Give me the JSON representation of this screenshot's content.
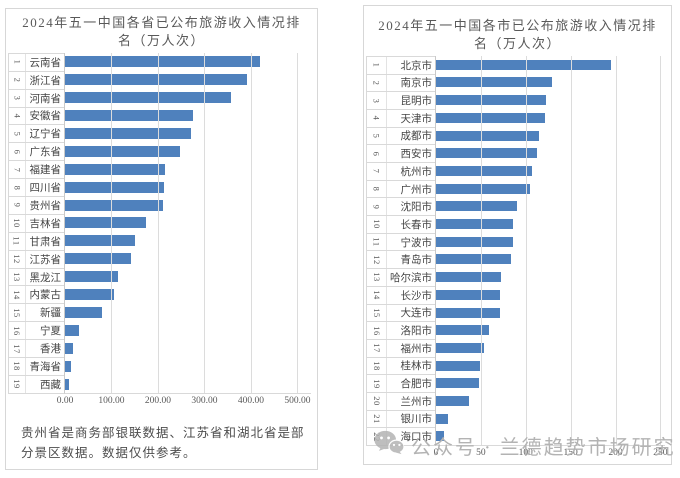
{
  "watermark": {
    "label": "公众号 · 兰德趋势市场研究",
    "icon": "wechat-icon",
    "color": "#b3b3b3"
  },
  "chart_data": [
    {
      "type": "bar",
      "orientation": "horizontal",
      "title": "2024年五一中国各省已公布旅游收入情况排名（万人次）",
      "title_display": "2024年五一中国各省已公布旅游收入情况排\n名（万人次）",
      "footnote": "贵州省是商务部银联数据、江苏省和湖北省是部\n分景区数据。数据仅供参考。",
      "ranks": [
        1,
        2,
        3,
        4,
        5,
        6,
        7,
        8,
        9,
        10,
        11,
        12,
        13,
        14,
        15,
        16,
        17,
        18,
        19
      ],
      "categories": [
        "云南省",
        "浙江省",
        "河南省",
        "安徽省",
        "辽宁省",
        "广东省",
        "福建省",
        "四川省",
        "贵州省",
        "吉林省",
        "甘肃省",
        "江苏省",
        "黑龙江",
        "内蒙古",
        "新疆",
        "宁夏",
        "香港",
        "青海省",
        "西藏"
      ],
      "values": [
        420,
        392,
        357,
        275,
        272,
        247,
        216,
        212,
        210,
        175,
        150,
        143,
        113,
        106,
        80,
        30,
        18,
        12,
        9
      ],
      "xlim": [
        0,
        500
      ],
      "xticks": [
        "0.00",
        "100.00",
        "200.00",
        "300.00",
        "400.00",
        "500.00"
      ],
      "grid": true,
      "legend": "none",
      "bar_color": "#4f81bd"
    },
    {
      "type": "bar",
      "orientation": "horizontal",
      "title": "2024年五一中国各市已公布旅游收入情况排名（万人次）",
      "title_display": "2024年五一中国各市已公布旅游收入情况排\n名（万人次）",
      "ranks": [
        1,
        2,
        3,
        4,
        5,
        6,
        7,
        8,
        9,
        10,
        11,
        12,
        13,
        14,
        15,
        16,
        17,
        18,
        19,
        20,
        21,
        22
      ],
      "categories": [
        "北京市",
        "南京市",
        "昆明市",
        "天津市",
        "成都市",
        "西安市",
        "杭州市",
        "广州市",
        "沈阳市",
        "长春市",
        "宁波市",
        "青岛市",
        "哈尔滨市",
        "长沙市",
        "大连市",
        "洛阳市",
        "福州市",
        "桂林市",
        "合肥市",
        "兰州市",
        "银川市",
        "海口市"
      ],
      "values": [
        195,
        129,
        123,
        121,
        115,
        113,
        107,
        105,
        90,
        86,
        85.5,
        84,
        72,
        71.5,
        71,
        59,
        53,
        49,
        48,
        37,
        13,
        9
      ],
      "xlim": [
        0,
        250
      ],
      "xticks": [
        "0",
        "50",
        "100",
        "150",
        "200",
        "250"
      ],
      "grid": true,
      "legend": "none",
      "bar_color": "#4f81bd"
    }
  ]
}
